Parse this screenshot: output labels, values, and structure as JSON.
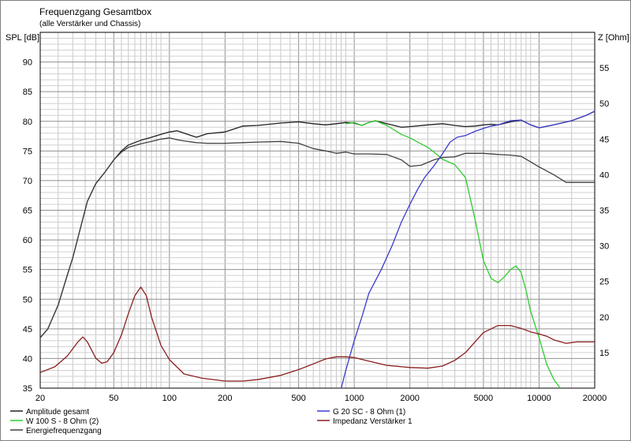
{
  "chart_data": {
    "type": "line",
    "title": "Frequenzgang Gesamtbox",
    "subtitle": "(alle Verstärker und Chassis)",
    "ylabel_left": "SPL [dB]",
    "ylabel_right": "Z [Ohm]",
    "x_scale": "log",
    "xlim": [
      20,
      20000
    ],
    "ylim_left": [
      35,
      95
    ],
    "ylim_right": [
      10,
      60
    ],
    "grid": true,
    "x_tick_labels": [
      "20",
      "50",
      "100",
      "200",
      "500",
      "1000",
      "2000",
      "5000",
      "10000",
      "20000"
    ],
    "x_ticks": [
      20,
      50,
      100,
      200,
      500,
      1000,
      2000,
      5000,
      10000,
      20000
    ],
    "y_left_ticks": [
      35,
      40,
      45,
      50,
      55,
      60,
      65,
      70,
      75,
      80,
      85,
      90
    ],
    "y_right_ticks": [
      15,
      20,
      25,
      30,
      35,
      40,
      45,
      50,
      55
    ],
    "legend_position": "bottom",
    "series": [
      {
        "name": "Amplitude gesamt",
        "axis": "left",
        "color": "#202020",
        "points": [
          [
            20,
            43.5
          ],
          [
            22,
            45
          ],
          [
            25,
            49
          ],
          [
            28,
            54
          ],
          [
            30,
            57
          ],
          [
            33,
            62
          ],
          [
            36,
            66.5
          ],
          [
            40,
            69.5
          ],
          [
            45,
            71.5
          ],
          [
            50,
            73.5
          ],
          [
            55,
            75
          ],
          [
            60,
            76
          ],
          [
            70,
            76.8
          ],
          [
            80,
            77.3
          ],
          [
            90,
            77.8
          ],
          [
            100,
            78.2
          ],
          [
            110,
            78.4
          ],
          [
            120,
            78
          ],
          [
            140,
            77.3
          ],
          [
            160,
            77.9
          ],
          [
            200,
            78.2
          ],
          [
            250,
            79.2
          ],
          [
            300,
            79.3
          ],
          [
            400,
            79.7
          ],
          [
            500,
            79.9
          ],
          [
            600,
            79.6
          ],
          [
            700,
            79.4
          ],
          [
            800,
            79.6
          ],
          [
            900,
            79.8
          ],
          [
            1000,
            79.7
          ],
          [
            1100,
            79.3
          ],
          [
            1200,
            79.8
          ],
          [
            1300,
            80.1
          ],
          [
            1500,
            79.6
          ],
          [
            1800,
            79
          ],
          [
            2000,
            79.1
          ],
          [
            2500,
            79.4
          ],
          [
            3000,
            79.6
          ],
          [
            3500,
            79.3
          ],
          [
            4000,
            79.1
          ],
          [
            4500,
            79.2
          ],
          [
            5000,
            79.4
          ],
          [
            5500,
            79.5
          ],
          [
            6000,
            79.4
          ],
          [
            7000,
            79.9
          ],
          [
            8000,
            80.2
          ],
          [
            9000,
            79.4
          ],
          [
            10000,
            78.9
          ],
          [
            12000,
            79.4
          ],
          [
            15000,
            80.1
          ],
          [
            18000,
            81
          ],
          [
            20000,
            81.7
          ]
        ]
      },
      {
        "name": "W 100 S - 8 Ohm (2)",
        "axis": "left",
        "color": "#2ecc2e",
        "points": [
          [
            900,
            79.6
          ],
          [
            1000,
            79.8
          ],
          [
            1100,
            79.3
          ],
          [
            1200,
            79.8
          ],
          [
            1300,
            80.1
          ],
          [
            1500,
            79.3
          ],
          [
            1800,
            77.8
          ],
          [
            2000,
            77.2
          ],
          [
            2500,
            75.6
          ],
          [
            2800,
            74.4
          ],
          [
            3000,
            73.6
          ],
          [
            3500,
            72.7
          ],
          [
            4000,
            70.5
          ],
          [
            4500,
            63.5
          ],
          [
            5000,
            56.5
          ],
          [
            5500,
            53.5
          ],
          [
            6000,
            52.8
          ],
          [
            6500,
            53.8
          ],
          [
            7000,
            55
          ],
          [
            7500,
            55.6
          ],
          [
            8000,
            54.5
          ],
          [
            8500,
            51.5
          ],
          [
            9000,
            48
          ],
          [
            10000,
            43.5
          ],
          [
            11000,
            39
          ],
          [
            12000,
            36.5
          ],
          [
            13000,
            35
          ]
        ]
      },
      {
        "name": "Energiefrequenzgang",
        "axis": "left",
        "color": "#404040",
        "points": [
          [
            20,
            43.5
          ],
          [
            22,
            45
          ],
          [
            25,
            49
          ],
          [
            28,
            54
          ],
          [
            30,
            57
          ],
          [
            33,
            62
          ],
          [
            36,
            66.5
          ],
          [
            40,
            69.5
          ],
          [
            45,
            71.5
          ],
          [
            50,
            73.5
          ],
          [
            55,
            74.8
          ],
          [
            60,
            75.6
          ],
          [
            70,
            76.2
          ],
          [
            80,
            76.6
          ],
          [
            90,
            77
          ],
          [
            100,
            77.2
          ],
          [
            110,
            76.9
          ],
          [
            120,
            76.7
          ],
          [
            140,
            76.4
          ],
          [
            160,
            76.3
          ],
          [
            200,
            76.3
          ],
          [
            250,
            76.4
          ],
          [
            300,
            76.5
          ],
          [
            400,
            76.6
          ],
          [
            500,
            76.3
          ],
          [
            600,
            75.4
          ],
          [
            700,
            75
          ],
          [
            800,
            74.6
          ],
          [
            900,
            74.8
          ],
          [
            1000,
            74.5
          ],
          [
            1200,
            74.5
          ],
          [
            1500,
            74.4
          ],
          [
            1800,
            73.5
          ],
          [
            2000,
            72.4
          ],
          [
            2300,
            72.6
          ],
          [
            2700,
            73.5
          ],
          [
            3000,
            73.9
          ],
          [
            3500,
            74
          ],
          [
            4000,
            74.6
          ],
          [
            5000,
            74.6
          ],
          [
            6000,
            74.4
          ],
          [
            7000,
            74.3
          ],
          [
            8000,
            74.1
          ],
          [
            10000,
            72.3
          ],
          [
            12000,
            71
          ],
          [
            14000,
            69.7
          ],
          [
            16000,
            69.7
          ],
          [
            20000,
            69.7
          ]
        ]
      },
      {
        "name": "G 20 SC - 8 Ohm (1)",
        "axis": "left",
        "color": "#3b3bcc",
        "points": [
          [
            850,
            35
          ],
          [
            900,
            38
          ],
          [
            1000,
            43
          ],
          [
            1100,
            47
          ],
          [
            1200,
            51
          ],
          [
            1400,
            55
          ],
          [
            1600,
            59
          ],
          [
            1800,
            63
          ],
          [
            2000,
            66
          ],
          [
            2200,
            68.5
          ],
          [
            2400,
            70.5
          ],
          [
            2700,
            72.5
          ],
          [
            3000,
            74.5
          ],
          [
            3300,
            76.5
          ],
          [
            3600,
            77.3
          ],
          [
            4000,
            77.6
          ],
          [
            4500,
            78.3
          ],
          [
            5000,
            78.8
          ],
          [
            5500,
            79.2
          ],
          [
            6000,
            79.4
          ],
          [
            7000,
            80.1
          ],
          [
            8000,
            80.2
          ],
          [
            9000,
            79.4
          ],
          [
            10000,
            78.9
          ],
          [
            12000,
            79.4
          ],
          [
            15000,
            80.1
          ],
          [
            18000,
            81
          ],
          [
            20000,
            81.7
          ]
        ]
      },
      {
        "name": "Impedanz Verstärker 1",
        "axis": "right",
        "color": "#8b1e1e",
        "points": [
          [
            20,
            12.2
          ],
          [
            24,
            13
          ],
          [
            28,
            14.5
          ],
          [
            32,
            16.5
          ],
          [
            34,
            17.2
          ],
          [
            36,
            16.5
          ],
          [
            40,
            14.2
          ],
          [
            43,
            13.5
          ],
          [
            46,
            13.7
          ],
          [
            50,
            15
          ],
          [
            55,
            17.5
          ],
          [
            60,
            20.5
          ],
          [
            65,
            23
          ],
          [
            70,
            24.2
          ],
          [
            75,
            23
          ],
          [
            80,
            20
          ],
          [
            90,
            16
          ],
          [
            100,
            14
          ],
          [
            120,
            12
          ],
          [
            150,
            11.4
          ],
          [
            200,
            11
          ],
          [
            250,
            11
          ],
          [
            300,
            11.2
          ],
          [
            400,
            11.8
          ],
          [
            500,
            12.6
          ],
          [
            600,
            13.4
          ],
          [
            700,
            14.1
          ],
          [
            800,
            14.4
          ],
          [
            900,
            14.4
          ],
          [
            1000,
            14.3
          ],
          [
            1200,
            13.8
          ],
          [
            1500,
            13.2
          ],
          [
            2000,
            12.9
          ],
          [
            2500,
            12.8
          ],
          [
            3000,
            13.1
          ],
          [
            3500,
            13.9
          ],
          [
            4000,
            15
          ],
          [
            4500,
            16.5
          ],
          [
            5000,
            17.8
          ],
          [
            6000,
            18.8
          ],
          [
            7000,
            18.8
          ],
          [
            8000,
            18.4
          ],
          [
            9000,
            17.9
          ],
          [
            10000,
            17.6
          ],
          [
            11000,
            17.3
          ],
          [
            12000,
            16.8
          ],
          [
            14000,
            16.3
          ],
          [
            16000,
            16.5
          ],
          [
            20000,
            16.5
          ]
        ]
      }
    ]
  }
}
